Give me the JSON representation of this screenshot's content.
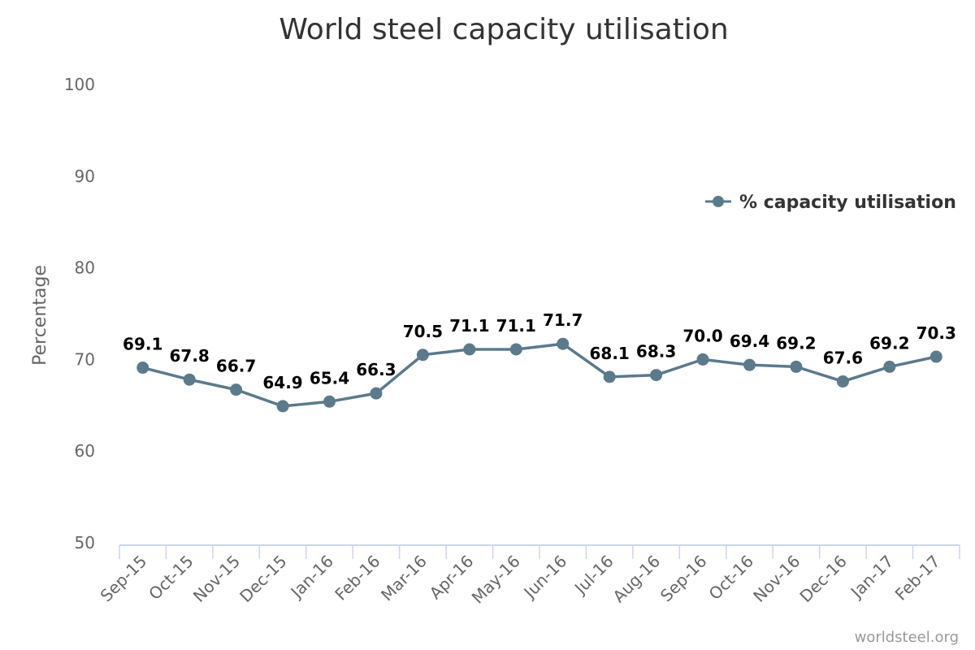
{
  "chart_data": {
    "type": "line",
    "title": "World steel capacity utilisation",
    "xlabel": "",
    "ylabel": "Percentage",
    "ylim": [
      50,
      100
    ],
    "yticks": [
      "50",
      "60",
      "70",
      "80",
      "90",
      "100"
    ],
    "grid": false,
    "legend_position": "right",
    "categories": [
      "Sep-15",
      "Oct-15",
      "Nov-15",
      "Dec-15",
      "Jan-16",
      "Feb-16",
      "Mar-16",
      "Apr-16",
      "May-16",
      "Jun-16",
      "Jul-16",
      "Aug-16",
      "Sep-16",
      "Oct-16",
      "Nov-16",
      "Dec-16",
      "Jan-17",
      "Feb-17"
    ],
    "series": [
      {
        "name": "% capacity utilisation",
        "color": "#5b7a8c",
        "values": [
          69.1,
          67.8,
          66.7,
          64.9,
          65.4,
          66.3,
          70.5,
          71.1,
          71.1,
          71.7,
          68.1,
          68.3,
          70.0,
          69.4,
          69.2,
          67.6,
          69.2,
          70.3
        ],
        "labels": [
          "69.1",
          "67.8",
          "66.7",
          "64.9",
          "65.4",
          "66.3",
          "70.5",
          "71.1",
          "71.1",
          "71.7",
          "68.1",
          "68.3",
          "70.0",
          "69.4",
          "69.2",
          "67.6",
          "69.2",
          "70.3"
        ]
      }
    ],
    "credit": "worldsteel.org",
    "colors": {
      "axis": "#ccd6eb",
      "text": "#666666",
      "title": "#333333"
    }
  }
}
